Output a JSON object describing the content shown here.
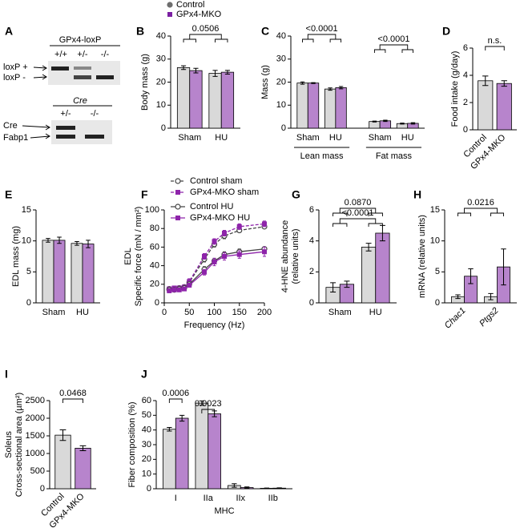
{
  "legend": {
    "series": [
      {
        "name": "Control",
        "color": "#6e6e6e",
        "marker": "circle"
      },
      {
        "name": "GPx4-MKO",
        "color": "#7b1fa2",
        "marker": "square"
      }
    ]
  },
  "gel": {
    "label": "A",
    "title": "GPx4-loxP",
    "lanes": [
      "+/+",
      "+/-",
      "-/-"
    ],
    "bands": [
      "loxP +",
      "loxP -"
    ],
    "cre_title": "Cre",
    "cre_lanes": [
      "+/-",
      "-/-"
    ],
    "cre_bands": [
      "Cre",
      "Fabp1"
    ]
  },
  "chart_data": [
    {
      "type": "bar",
      "label": "B",
      "ylabel": [
        "Body mass (g)"
      ],
      "categories": [
        "Sham",
        "HU"
      ],
      "series": [
        {
          "color": "#d9d9d9",
          "values": [
            26.3,
            23.8
          ],
          "errors": [
            0.8,
            1.3
          ]
        },
        {
          "color": "#b784cc",
          "values": [
            25.0,
            24.3
          ],
          "errors": [
            1.0,
            0.8
          ]
        }
      ],
      "ylim": [
        0,
        40
      ],
      "yticks": [
        0,
        10,
        20,
        30,
        40
      ],
      "annotations": [
        {
          "text": "0.0506",
          "between": [
            "Sham",
            "HU"
          ]
        }
      ]
    },
    {
      "type": "bar",
      "label": "C",
      "ylabel": [
        "Mass (g)"
      ],
      "categories": [
        "Sham",
        "HU",
        "Sham",
        "HU"
      ],
      "groups": [
        "Lean mass",
        "Fat mass"
      ],
      "series": [
        {
          "color": "#d9d9d9",
          "values": [
            19.6,
            17.0,
            2.9,
            2.0
          ],
          "errors": [
            0.5,
            0.5,
            0.2,
            0.2
          ]
        },
        {
          "color": "#b784cc",
          "values": [
            19.6,
            17.6,
            3.2,
            2.1
          ],
          "errors": [
            0.2,
            0.5,
            0.3,
            0.3
          ]
        }
      ],
      "ylim": [
        0,
        40
      ],
      "yticks": [
        0,
        10,
        20,
        30,
        40
      ],
      "annotations": [
        {
          "text": "<0.0001",
          "group": "Lean mass",
          "between": [
            "Sham",
            "HU"
          ]
        },
        {
          "text": "<0.0001",
          "group": "Fat mass",
          "between": [
            "Sham",
            "HU"
          ]
        }
      ]
    },
    {
      "type": "bar",
      "label": "D",
      "ylabel": [
        "Food intake (g/day)"
      ],
      "categories": [
        "Control",
        "GPx4-MKO"
      ],
      "xtick_rotation": -45,
      "values": [
        3.6,
        3.4
      ],
      "errors": [
        0.35,
        0.2
      ],
      "colors": [
        "#d9d9d9",
        "#b784cc"
      ],
      "ylim": [
        0,
        6
      ],
      "yticks": [
        0,
        2,
        4,
        6
      ],
      "annotations": [
        {
          "text": "n.s.",
          "between": [
            "Control",
            "GPx4-MKO"
          ]
        }
      ]
    },
    {
      "type": "bar",
      "label": "E",
      "ylabel": [
        "EDL mass (mg)"
      ],
      "categories": [
        "Sham",
        "HU"
      ],
      "series": [
        {
          "color": "#d9d9d9",
          "values": [
            10.1,
            9.6
          ],
          "errors": [
            0.3,
            0.3
          ]
        },
        {
          "color": "#b784cc",
          "values": [
            10.1,
            9.5
          ],
          "errors": [
            0.5,
            0.6
          ]
        }
      ],
      "ylim": [
        0,
        15
      ],
      "yticks": [
        0,
        5,
        10,
        15
      ]
    },
    {
      "type": "line",
      "label": "F",
      "ylabel": [
        "EDL",
        "Specific force (mN / mm²)"
      ],
      "xlabel": "Frequency (Hz)",
      "x": [
        10,
        20,
        30,
        40,
        50,
        80,
        100,
        120,
        150,
        200
      ],
      "series": [
        {
          "name": "Control sham",
          "color": "#444444",
          "marker": "circle-open",
          "dash": true,
          "values": [
            15,
            15,
            16,
            17,
            22,
            47,
            63,
            72,
            78,
            82
          ],
          "errors": [
            2,
            2,
            2,
            2,
            2,
            3,
            3,
            3,
            2,
            2
          ]
        },
        {
          "name": "GPx4-MKO sham",
          "color": "#8e24aa",
          "marker": "square",
          "dash": true,
          "values": [
            15,
            16,
            16,
            17,
            23,
            50,
            66,
            75,
            82,
            85
          ],
          "errors": [
            2,
            2,
            2,
            2,
            3,
            3,
            3,
            3,
            3,
            3
          ]
        },
        {
          "name": "Control HU",
          "color": "#444444",
          "marker": "circle-open",
          "dash": false,
          "values": [
            14,
            14,
            15,
            16,
            20,
            36,
            45,
            52,
            55,
            58
          ],
          "errors": [
            2,
            2,
            2,
            2,
            2,
            3,
            3,
            3,
            3,
            2
          ]
        },
        {
          "name": "GPx4-MKO HU",
          "color": "#8e24aa",
          "marker": "square",
          "dash": false,
          "values": [
            13,
            14,
            14,
            15,
            19,
            33,
            44,
            50,
            52,
            55
          ],
          "errors": [
            2,
            2,
            2,
            2,
            2,
            3,
            4,
            4,
            4,
            5
          ]
        }
      ],
      "xlim": [
        0,
        200
      ],
      "xticks": [
        0,
        50,
        100,
        150,
        200
      ],
      "ylim": [
        0,
        100
      ],
      "yticks": [
        0,
        20,
        40,
        60,
        80,
        100
      ]
    },
    {
      "type": "bar",
      "label": "G",
      "ylabel": [
        "4-HNE abundance",
        "(relative units)"
      ],
      "categories": [
        "Sham",
        "HU"
      ],
      "series": [
        {
          "color": "#d9d9d9",
          "values": [
            1.0,
            3.6
          ],
          "errors": [
            0.3,
            0.25
          ]
        },
        {
          "color": "#b784cc",
          "values": [
            1.2,
            4.5
          ],
          "errors": [
            0.2,
            0.5
          ]
        }
      ],
      "ylim": [
        0,
        6
      ],
      "yticks": [
        0,
        2,
        4,
        6
      ],
      "annotations": [
        {
          "text": "0.0870",
          "between": [
            "Sham",
            "HU"
          ]
        },
        {
          "text": "<0.0001",
          "between": [
            "Sham",
            "HU"
          ]
        }
      ]
    },
    {
      "type": "bar",
      "label": "H",
      "ylabel": [
        "mRNA (relative units)"
      ],
      "categories": [
        "Chac1",
        "Ptgs2"
      ],
      "category_style": "italic",
      "xtick_rotation": -45,
      "series": [
        {
          "color": "#d9d9d9",
          "values": [
            1.0,
            1.0
          ],
          "errors": [
            0.3,
            0.5
          ]
        },
        {
          "color": "#b784cc",
          "values": [
            4.3,
            5.8
          ],
          "errors": [
            1.2,
            2.9
          ]
        }
      ],
      "ylim": [
        0,
        15
      ],
      "yticks": [
        0,
        5,
        10,
        15
      ],
      "annotations": [
        {
          "text": "0.0216",
          "between": [
            "Chac1",
            "Ptgs2"
          ]
        }
      ]
    },
    {
      "type": "bar",
      "label": "I",
      "ylabel": [
        "Soleus",
        "Cross-sectional area (µm²)"
      ],
      "categories": [
        "Control",
        "GPx4-MKO"
      ],
      "xtick_rotation": -45,
      "values": [
        1520,
        1150
      ],
      "errors": [
        150,
        70
      ],
      "colors": [
        "#d9d9d9",
        "#b784cc"
      ],
      "ylim": [
        0,
        2500
      ],
      "yticks": [
        0,
        500,
        1000,
        1500,
        2000,
        2500
      ],
      "annotations": [
        {
          "text": "0.0468",
          "between": [
            "Control",
            "GPx4-MKO"
          ]
        }
      ]
    },
    {
      "type": "bar",
      "label": "J",
      "ylabel": [
        "Fiber composition (%)"
      ],
      "xlabel": "MHC",
      "categories": [
        "I",
        "IIa",
        "IIx",
        "IIb"
      ],
      "series": [
        {
          "color": "#d9d9d9",
          "values": [
            40.5,
            58.3,
            2.2,
            0.3
          ],
          "errors": [
            1.2,
            1.5,
            1.2,
            0.2
          ]
        },
        {
          "color": "#b784cc",
          "values": [
            48.0,
            51.0,
            0.8,
            0.4
          ],
          "errors": [
            2.0,
            2.0,
            0.4,
            0.2
          ]
        }
      ],
      "ylim": [
        0,
        60
      ],
      "yticks": [
        0,
        10,
        20,
        30,
        40,
        50,
        60
      ],
      "annotations": [
        {
          "text": "0.0006",
          "between": [
            "I"
          ]
        },
        {
          "text": "0.0023",
          "between": [
            "IIa"
          ]
        }
      ]
    }
  ]
}
